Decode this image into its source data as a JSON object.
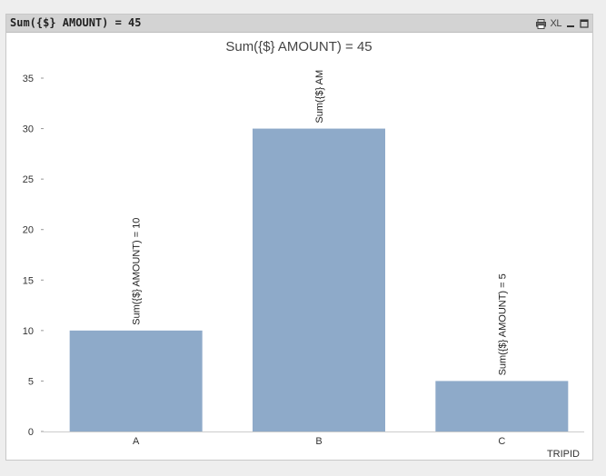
{
  "window": {
    "caption": "Sum({$} AMOUNT) = 45",
    "icons": [
      "print-icon",
      "xl-icon",
      "minimize-icon",
      "maximize-icon"
    ],
    "xl_label": "XL"
  },
  "colors": {
    "bar": "#8eaac9",
    "caption_bg": "#d3d3d3",
    "axis": "#999999"
  },
  "chart_data": {
    "type": "bar",
    "title": "Sum({$} AMOUNT) = 45",
    "xlabel": "TRIPID",
    "ylabel": "",
    "categories": [
      "A",
      "B",
      "C"
    ],
    "values": [
      10,
      30,
      5
    ],
    "data_labels": [
      "Sum({$} AMOUNT) = 10",
      "Sum({$} AM",
      "Sum({$} AMOUNT) = 5"
    ],
    "ylim": [
      0,
      35
    ],
    "yticks": [
      "0",
      "5",
      "10",
      "15",
      "20",
      "25",
      "30",
      "35"
    ],
    "grid": false,
    "legend": "none"
  }
}
